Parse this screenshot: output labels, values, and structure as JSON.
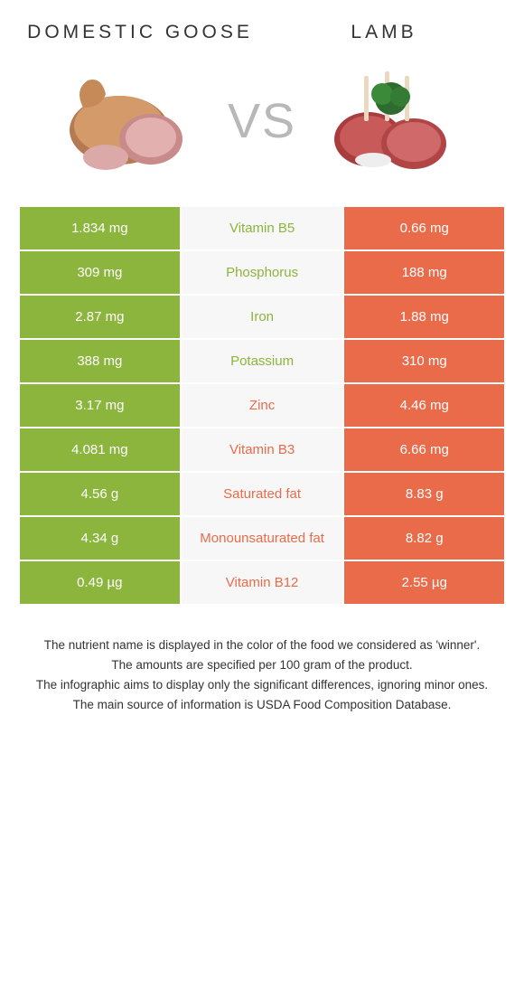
{
  "left_title": "Domestic goose",
  "right_title": "Lamb",
  "vs_label": "VS",
  "colors": {
    "green": "#8bb53c",
    "orange": "#e96b4a",
    "mid_bg": "#f7f7f7",
    "mid_text_green": "#8bb53c",
    "mid_text_orange": "#e96b4a",
    "white": "#ffffff"
  },
  "rows": [
    {
      "left": "1.834 mg",
      "label": "Vitamin B5",
      "right": "0.66 mg",
      "winner": "green"
    },
    {
      "left": "309 mg",
      "label": "Phosphorus",
      "right": "188 mg",
      "winner": "green"
    },
    {
      "left": "2.87 mg",
      "label": "Iron",
      "right": "1.88 mg",
      "winner": "green"
    },
    {
      "left": "388 mg",
      "label": "Potassium",
      "right": "310 mg",
      "winner": "green"
    },
    {
      "left": "3.17 mg",
      "label": "Zinc",
      "right": "4.46 mg",
      "winner": "orange"
    },
    {
      "left": "4.081 mg",
      "label": "Vitamin B3",
      "right": "6.66 mg",
      "winner": "orange"
    },
    {
      "left": "4.56 g",
      "label": "Saturated fat",
      "right": "8.83 g",
      "winner": "orange"
    },
    {
      "left": "4.34 g",
      "label": "Monounsaturated fat",
      "right": "8.82 g",
      "winner": "orange"
    },
    {
      "left": "0.49 µg",
      "label": "Vitamin B12",
      "right": "2.55 µg",
      "winner": "orange"
    }
  ],
  "footer_lines": [
    "The nutrient name is displayed in the color of the food we considered as 'winner'.",
    "The amounts are specified per 100 gram of the product.",
    "The infographic aims to display only the significant differences, ignoring minor ones.",
    "The main source of information is USDA Food Composition Database."
  ]
}
